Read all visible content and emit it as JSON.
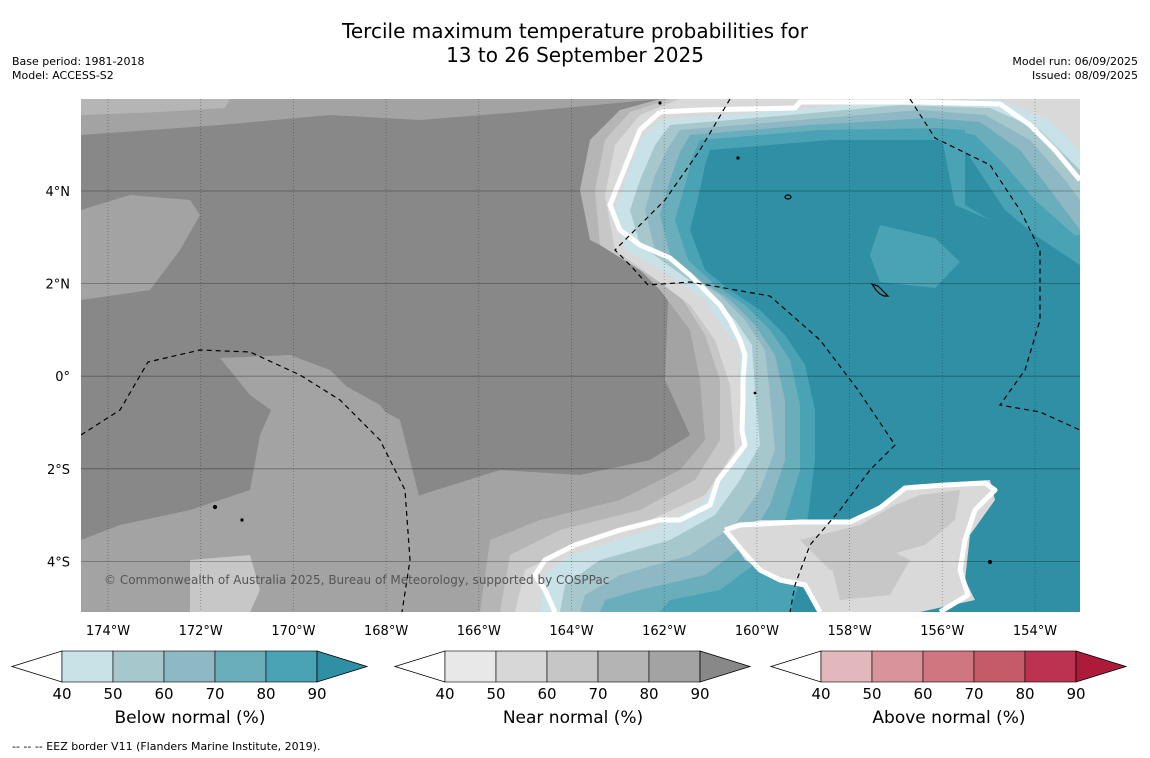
{
  "title": {
    "line1": "Tercile maximum temperature probabilities for",
    "line2": "13 to 26 September 2025"
  },
  "meta": {
    "base_period": "Base period: 1981-2018",
    "model": "Model: ACCESS-S2",
    "model_run": "Model run: 06/09/2025",
    "issued": "Issued: 08/09/2025"
  },
  "map": {
    "copyright": "© Commonwealth of Australia 2025, Bureau of Meteorology, supported by COSPPac",
    "lon_ticks": [
      "174°W",
      "172°W",
      "170°W",
      "168°W",
      "166°W",
      "164°W",
      "162°W",
      "160°W",
      "158°W",
      "156°W",
      "154°W"
    ],
    "lat_ticks": [
      "4°N",
      "2°N",
      "0°",
      "2°S",
      "4°S"
    ],
    "colors": {
      "near": [
        "#d9d9d9",
        "#c7c7c7",
        "#b5b5b5",
        "#a3a3a3",
        "#888888"
      ],
      "below": [
        "#c9e2e8",
        "#a6c8cd",
        "#8db8c4",
        "#6aaebb",
        "#4aa3b5",
        "#2e8fa5"
      ],
      "land": "#000000",
      "eez": "#000000"
    }
  },
  "colorbars": [
    {
      "label": "Below normal (%)",
      "ticks": [
        "40",
        "50",
        "60",
        "70",
        "80",
        "90"
      ],
      "colors": [
        "#c9e2e8",
        "#a6c8cd",
        "#8db8c4",
        "#6aaebb",
        "#4aa3b5"
      ],
      "extend_color": "#2e8fa5"
    },
    {
      "label": "Near normal (%)",
      "ticks": [
        "40",
        "50",
        "60",
        "70",
        "80",
        "90"
      ],
      "colors": [
        "#e8e8e8",
        "#d7d7d7",
        "#c6c6c6",
        "#b4b4b4",
        "#a3a3a3"
      ],
      "extend_color": "#888888"
    },
    {
      "label": "Above normal (%)",
      "ticks": [
        "40",
        "50",
        "60",
        "70",
        "80",
        "90"
      ],
      "colors": [
        "#e2b8bd",
        "#d8939b",
        "#cf7680",
        "#c55a69",
        "#bb3350"
      ],
      "extend_color": "#ae1b3a"
    }
  ],
  "footnote": "--  --  -- EEZ border V11 (Flanders Marine Institute, 2019)."
}
